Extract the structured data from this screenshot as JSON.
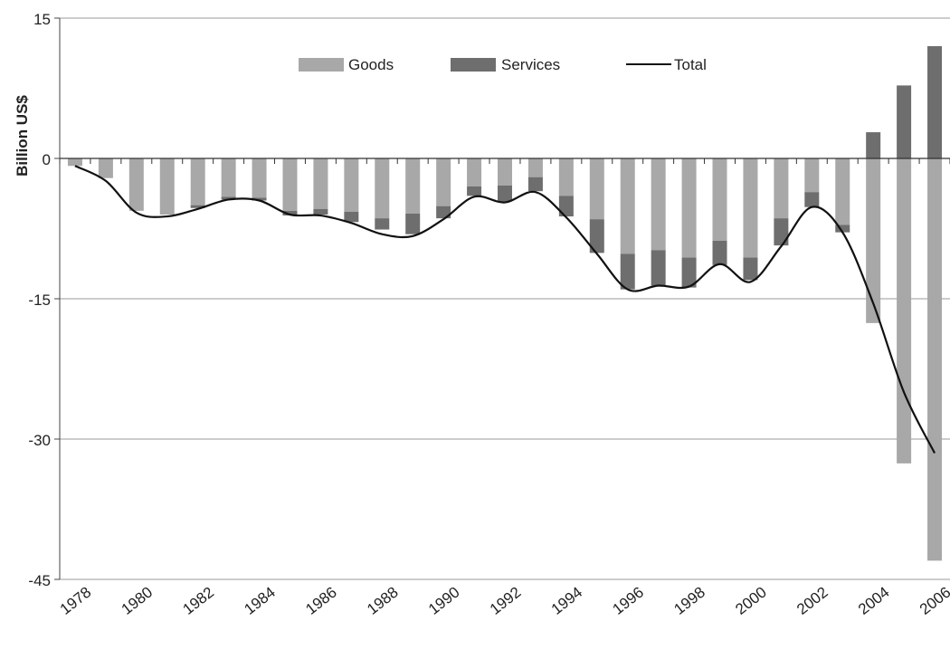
{
  "chart_data": {
    "type": "bar",
    "title": "",
    "xlabel": "",
    "ylabel": "Billion US$",
    "ylim": [
      -45,
      15
    ],
    "yticks": [
      15,
      0,
      -15,
      -30,
      -45
    ],
    "grid": true,
    "legend_position": "top",
    "stacked": true,
    "categories": [
      "1978",
      "1979",
      "1980",
      "1981",
      "1982",
      "1983",
      "1984",
      "1985",
      "1986",
      "1987",
      "1988",
      "1989",
      "1990",
      "1991",
      "1992",
      "1993",
      "1994",
      "1995",
      "1996",
      "1997",
      "1998",
      "1999",
      "2000",
      "2001",
      "2002",
      "2003",
      "2004",
      "2005",
      "2006"
    ],
    "x_tick_labels": [
      "1978",
      "1980",
      "1982",
      "1984",
      "1986",
      "1988",
      "1990",
      "1992",
      "1994",
      "1996",
      "1998",
      "2000",
      "2002",
      "2004",
      "2006"
    ],
    "series": [
      {
        "name": "Goods",
        "kind": "bar",
        "color": "#a8a8a8",
        "values": [
          -0.8,
          -2.1,
          -5.6,
          -6.0,
          -5.0,
          -4.1,
          -4.2,
          -5.6,
          -5.4,
          -5.7,
          -6.4,
          -5.9,
          -5.1,
          -3.0,
          -2.9,
          -2.0,
          -4.0,
          -6.5,
          -10.2,
          -9.8,
          -10.6,
          -8.8,
          -10.6,
          -6.4,
          -3.6,
          -7.1,
          -17.6,
          -32.6,
          -43.0
        ]
      },
      {
        "name": "Services",
        "kind": "bar",
        "color": "#6e6e6e",
        "values": [
          0,
          0,
          0,
          0,
          -0.3,
          -0.3,
          -0.3,
          -0.5,
          -0.6,
          -1.1,
          -1.2,
          -2.2,
          -1.3,
          -1.0,
          -1.7,
          -1.5,
          -2.2,
          -3.6,
          -3.8,
          -3.8,
          -3.2,
          -2.6,
          -2.4,
          -2.9,
          -1.6,
          -0.8,
          2.8,
          7.8,
          12.0
        ]
      },
      {
        "name": "Total",
        "kind": "line",
        "color": "#111111",
        "values": [
          -0.8,
          -2.4,
          -5.8,
          -6.2,
          -5.4,
          -4.4,
          -4.5,
          -6.0,
          -6.1,
          -6.9,
          -8.1,
          -8.3,
          -6.5,
          -4.1,
          -4.7,
          -3.6,
          -6.3,
          -10.2,
          -14.0,
          -13.6,
          -13.7,
          -11.3,
          -13.2,
          -9.4,
          -5.2,
          -7.9,
          -15.5,
          -25.0,
          -31.5
        ]
      }
    ]
  }
}
